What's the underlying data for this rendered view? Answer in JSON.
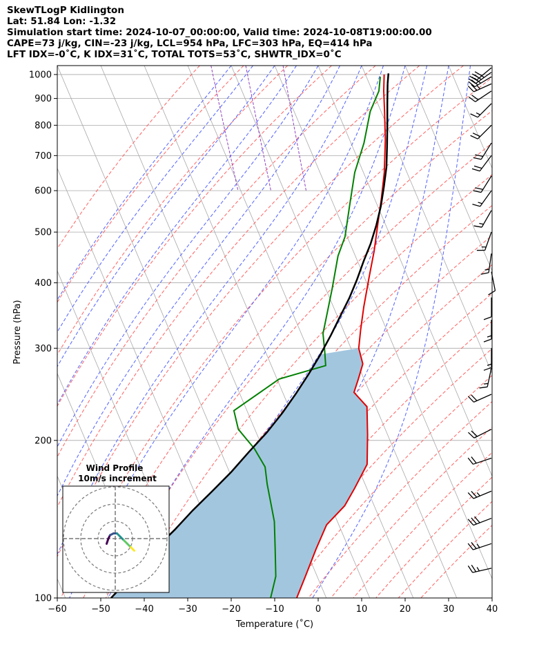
{
  "header": {
    "line1": "SkewTLogP Kidlington",
    "line2": "Lat: 51.84   Lon: -1.32",
    "line3": "Simulation start time: 2024-10-07_00:00:00, Valid time: 2024-10-08T19:00:00.00",
    "line4": "CAPE=73 j/kg, CIN=-23 j/kg, LCL=954 hPa, LFC=303 hPa, EQ=414 hPa",
    "line5": "LFT IDX=-0˚C, K IDX=31˚C, TOTAL TOTS=53˚C, SHWTR_IDX=0˚C"
  },
  "colors": {
    "temperature": "#e00000",
    "dewpoint": "#008000",
    "parcel": "#000000",
    "cape_fill": "#a3c6df",
    "dry_adiabat": "#ff6060",
    "moist_adiabat": "#5060ff",
    "isotherm": "#a8a8a8",
    "mixing_ratio": "#9040c0"
  },
  "chart_data": {
    "type": "line",
    "xlabel": "Temperature (˚C)",
    "ylabel": "Pressure (hPa)",
    "xlim": [
      -60,
      40
    ],
    "ylim": [
      1040,
      100
    ],
    "log_y": true,
    "grid": true,
    "x_ticks": [
      "−60",
      "−50",
      "−40",
      "−30",
      "−20",
      "−10",
      "0",
      "10",
      "20",
      "30",
      "40"
    ],
    "x_tick_values": [
      -60,
      -50,
      -40,
      -30,
      -20,
      -10,
      0,
      10,
      20,
      30,
      40
    ],
    "y_ticks": [
      "100",
      "200",
      "300",
      "400",
      "500",
      "600",
      "700",
      "800",
      "900",
      "1000"
    ],
    "y_tick_values": [
      100,
      200,
      300,
      400,
      500,
      600,
      700,
      800,
      900,
      1000
    ],
    "skew_per_log_decade": 51,
    "series": [
      {
        "key": "temperature",
        "points": [
          [
            14.3,
            1000
          ],
          [
            12.6,
            930
          ],
          [
            10.8,
            850
          ],
          [
            8.2,
            750
          ],
          [
            4.8,
            650
          ],
          [
            1.6,
            580
          ],
          [
            -1.6,
            520
          ],
          [
            -5.2,
            460
          ],
          [
            -8.9,
            410
          ],
          [
            -13.0,
            360
          ],
          [
            -16.0,
            325
          ],
          [
            -18.2,
            300
          ],
          [
            -18.8,
            280
          ],
          [
            -21.3,
            262
          ],
          [
            -23.6,
            247
          ],
          [
            -22.0,
            232
          ],
          [
            -24.6,
            205
          ],
          [
            -27.6,
            180
          ],
          [
            -32.8,
            162
          ],
          [
            -36.8,
            150
          ],
          [
            -42.8,
            138
          ],
          [
            -47.6,
            124
          ],
          [
            -52.7,
            110
          ],
          [
            -56.8,
            100
          ]
        ]
      },
      {
        "key": "dewpoint",
        "points": [
          [
            13.2,
            990
          ],
          [
            11.5,
            930
          ],
          [
            7.5,
            850
          ],
          [
            3.0,
            740
          ],
          [
            -2.0,
            650
          ],
          [
            -6.5,
            560
          ],
          [
            -10.5,
            490
          ],
          [
            -14.0,
            450
          ],
          [
            -18.5,
            390
          ],
          [
            -23.0,
            340
          ],
          [
            -25.0,
            320
          ],
          [
            -26.2,
            298
          ],
          [
            -27.5,
            278
          ],
          [
            -39.5,
            262
          ],
          [
            -53.0,
            228
          ],
          [
            -53.8,
            210
          ],
          [
            -52.0,
            193
          ],
          [
            -51.3,
            178
          ],
          [
            -52.5,
            165
          ],
          [
            -53.5,
            152
          ],
          [
            -54.5,
            140
          ],
          [
            -57.0,
            124
          ],
          [
            -59.5,
            110
          ],
          [
            -62.8,
            100
          ]
        ]
      },
      {
        "key": "parcel",
        "points": [
          [
            14.2,
            960
          ],
          [
            12.2,
            880
          ],
          [
            10.1,
            800
          ],
          [
            8.0,
            730
          ],
          [
            5.8,
            665
          ],
          [
            3.3,
            610
          ],
          [
            0.7,
            560
          ],
          [
            -2.2,
            515
          ],
          [
            -5.3,
            475
          ],
          [
            -8.6,
            440
          ],
          [
            -12.0,
            405
          ],
          [
            -15.5,
            374
          ],
          [
            -19.4,
            345
          ],
          [
            -23.3,
            318
          ],
          [
            -27.6,
            292
          ],
          [
            -32.2,
            268
          ],
          [
            -37.0,
            246
          ],
          [
            -42.0,
            226
          ],
          [
            -47.6,
            207
          ],
          [
            -53.6,
            190
          ],
          [
            -59.6,
            174
          ],
          [
            -65.8,
            160
          ],
          [
            -72.2,
            147
          ],
          [
            -78.2,
            135
          ],
          [
            -84.0,
            125
          ],
          [
            -90.0,
            115
          ],
          [
            -96.0,
            105
          ],
          [
            -99.5,
            100
          ]
        ]
      },
      {
        "key": "parcel_tail",
        "points": [
          [
            15.4,
            1005
          ],
          [
            14.2,
            960
          ]
        ]
      }
    ],
    "wind_barbs": [
      {
        "p": 1030,
        "u": 30,
        "v": 25
      },
      {
        "p": 1010,
        "u": 28,
        "v": 20
      },
      {
        "p": 990,
        "u": 25,
        "v": 15
      },
      {
        "p": 960,
        "u": 22,
        "v": 10
      },
      {
        "p": 930,
        "u": 15,
        "v": 10
      },
      {
        "p": 880,
        "u": 12,
        "v": 12
      },
      {
        "p": 800,
        "u": 15,
        "v": 15
      },
      {
        "p": 740,
        "u": 10,
        "v": 16
      },
      {
        "p": 700,
        "u": 12,
        "v": 16
      },
      {
        "p": 640,
        "u": 10,
        "v": 16
      },
      {
        "p": 600,
        "u": 10,
        "v": 14
      },
      {
        "p": 550,
        "u": 8,
        "v": 14
      },
      {
        "p": 500,
        "u": 5,
        "v": 14
      },
      {
        "p": 455,
        "u": 2,
        "v": 14
      },
      {
        "p": 420,
        "u": -2,
        "v": 10
      },
      {
        "p": 375,
        "u": 0,
        "v": 12
      },
      {
        "p": 340,
        "u": 0,
        "v": 14
      },
      {
        "p": 300,
        "u": 0,
        "v": 16
      },
      {
        "p": 275,
        "u": 3,
        "v": 14
      },
      {
        "p": 245,
        "u": 18,
        "v": 8
      },
      {
        "p": 210,
        "u": 20,
        "v": 10
      },
      {
        "p": 185,
        "u": 18,
        "v": 6
      },
      {
        "p": 160,
        "u": 24,
        "v": 10
      },
      {
        "p": 142,
        "u": 26,
        "v": 10
      },
      {
        "p": 127,
        "u": 24,
        "v": 8
      },
      {
        "p": 114,
        "u": 26,
        "v": 6
      }
    ],
    "hodograph": {
      "title": "Wind Profile",
      "subtitle": "10m/s increment",
      "rings_ms": [
        10,
        20,
        30
      ],
      "points": [
        [
          -5,
          -3
        ],
        [
          -4,
          0
        ],
        [
          -3,
          2
        ],
        [
          -1,
          3
        ],
        [
          1,
          3
        ],
        [
          3,
          1
        ],
        [
          5,
          -1
        ],
        [
          7,
          -3
        ],
        [
          9,
          -5
        ],
        [
          10,
          -6
        ],
        [
          11,
          -7
        ]
      ]
    }
  }
}
